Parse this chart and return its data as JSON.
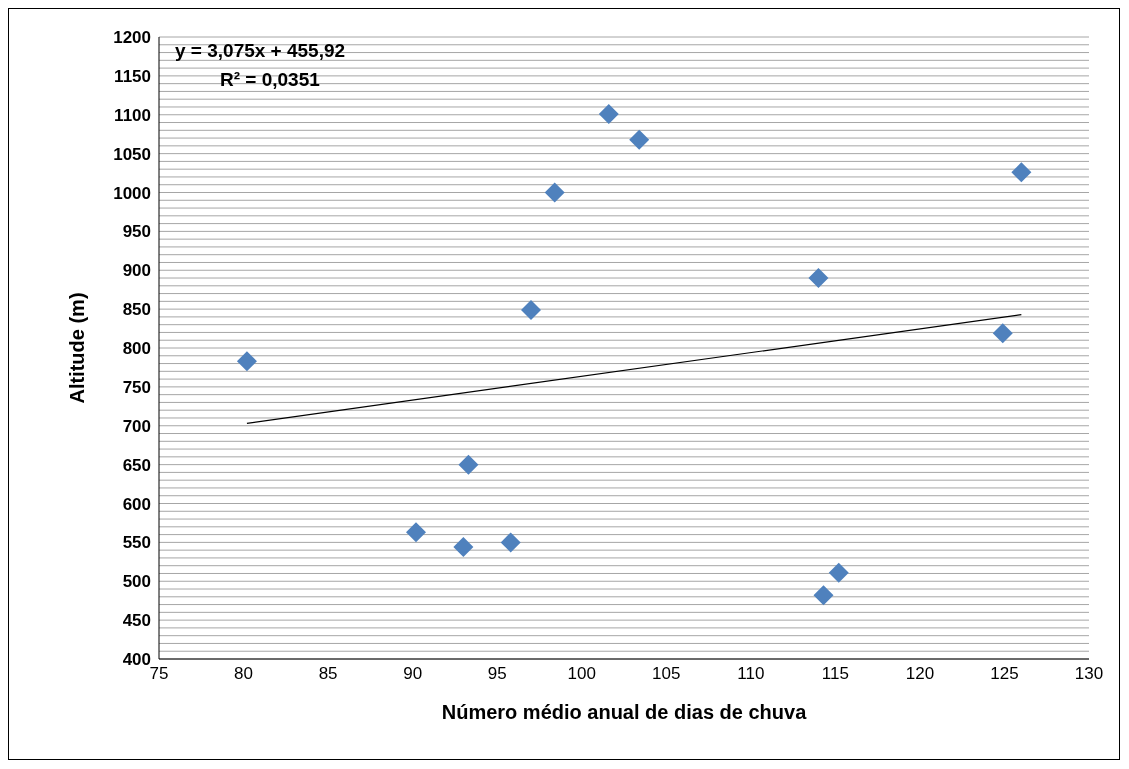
{
  "chart_data": {
    "type": "scatter",
    "xlabel": "Número médio anual de dias de chuva",
    "ylabel": "Altitude (m)",
    "xlim": [
      75,
      130
    ],
    "xticks": [
      75,
      80,
      85,
      90,
      95,
      100,
      105,
      110,
      115,
      120,
      125,
      130
    ],
    "ylim": [
      400,
      1200
    ],
    "yticks": [
      400,
      {
        "value": 410,
        "label": null
      },
      {
        "value": 420,
        "label": null
      },
      {
        "value": 430,
        "label": null
      },
      {
        "value": 440,
        "label": null
      },
      450,
      {
        "value": 460,
        "label": null
      },
      {
        "value": 470,
        "label": null
      },
      {
        "value": 480,
        "label": null
      },
      {
        "value": 490,
        "label": null
      },
      500,
      {
        "value": 510,
        "label": null
      },
      {
        "value": 520,
        "label": null
      },
      {
        "value": 530,
        "label": null
      },
      {
        "value": 540,
        "label": null
      },
      550,
      {
        "value": 560,
        "label": null
      },
      {
        "value": 570,
        "label": null
      },
      {
        "value": 580,
        "label": null
      },
      {
        "value": 590,
        "label": null
      },
      600,
      {
        "value": 610,
        "label": null
      },
      {
        "value": 620,
        "label": null
      },
      {
        "value": 630,
        "label": null
      },
      {
        "value": 640,
        "label": null
      },
      650,
      {
        "value": 660,
        "label": null
      },
      {
        "value": 670,
        "label": null
      },
      {
        "value": 680,
        "label": null
      },
      {
        "value": 690,
        "label": null
      },
      700,
      {
        "value": 710,
        "label": null
      },
      {
        "value": 720,
        "label": null
      },
      {
        "value": 730,
        "label": null
      },
      {
        "value": 740,
        "label": null
      },
      750,
      {
        "value": 760,
        "label": null
      },
      {
        "value": 770,
        "label": null
      },
      {
        "value": 780,
        "label": null
      },
      {
        "value": 790,
        "label": null
      },
      800,
      {
        "value": 810,
        "label": null
      },
      {
        "value": 820,
        "label": null
      },
      {
        "value": 830,
        "label": null
      },
      {
        "value": 840,
        "label": null
      },
      850,
      {
        "value": 860,
        "label": null
      },
      {
        "value": 870,
        "label": null
      },
      {
        "value": 880,
        "label": null
      },
      {
        "value": 890,
        "label": null
      },
      900,
      {
        "value": 910,
        "label": null
      },
      {
        "value": 920,
        "label": null
      },
      {
        "value": 930,
        "label": null
      },
      {
        "value": 940,
        "label": null
      },
      950,
      {
        "value": 960,
        "label": null
      },
      {
        "value": 970,
        "label": null
      },
      {
        "value": 980,
        "label": null
      },
      {
        "value": 990,
        "label": null
      },
      1000,
      {
        "value": 1010,
        "label": null
      },
      {
        "value": 1020,
        "label": null
      },
      {
        "value": 1030,
        "label": null
      },
      {
        "value": 1040,
        "label": null
      },
      1050,
      {
        "value": 1060,
        "label": null
      },
      {
        "value": 1070,
        "label": null
      },
      {
        "value": 1080,
        "label": null
      },
      {
        "value": 1090,
        "label": null
      },
      1100,
      {
        "value": 1110,
        "label": null
      },
      {
        "value": 1120,
        "label": null
      },
      {
        "value": 1130,
        "label": null
      },
      {
        "value": 1140,
        "label": null
      },
      1150,
      {
        "value": 1160,
        "label": null
      },
      {
        "value": 1170,
        "label": null
      },
      {
        "value": 1180,
        "label": null
      },
      {
        "value": 1190,
        "label": null
      },
      1200
    ],
    "grid": "y",
    "marker": "diamond",
    "annotations": [
      "y = 3,075x + 455,92",
      "R² = 0,0351"
    ],
    "series": [
      {
        "color": "#4f81bd",
        "x": [
          80.2,
          90.2,
          93.0,
          93.3,
          95.8,
          97.0,
          98.4,
          101.6,
          103.4,
          114.0,
          114.3,
          115.2,
          124.9,
          126.0
        ],
        "values": [
          783,
          563,
          544,
          650,
          550,
          849,
          1000,
          1101,
          1068,
          890,
          482,
          511,
          819,
          1026
        ]
      },
      {
        "type": "line",
        "color": "#000000",
        "marker": "none",
        "line_style": "solid",
        "x": [
          80.2,
          126.0
        ],
        "values": [
          703,
          843
        ]
      }
    ]
  }
}
